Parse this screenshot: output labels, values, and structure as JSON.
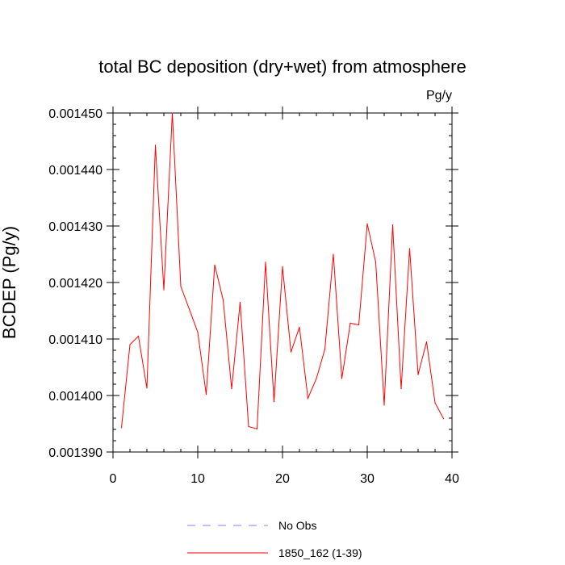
{
  "chart_data": {
    "type": "line",
    "title": "total BC deposition (dry+wet) from atmosphere",
    "units_label": "Pg/y",
    "xlabel": "",
    "ylabel": "BCDEP  (Pg/y)",
    "xlim": [
      0,
      40
    ],
    "ylim": [
      0.00139,
      0.00145
    ],
    "xticks": [
      "0",
      "10",
      "20",
      "30",
      "40"
    ],
    "yticks": [
      "0.001390",
      "0.001400",
      "0.001410",
      "0.001420",
      "0.001430",
      "0.001440",
      "0.001450"
    ],
    "grid": false,
    "legend_position": "bottom",
    "series": [
      {
        "name": "No Obs",
        "color": "#8080ff",
        "style": "dashed",
        "x": [],
        "values": []
      },
      {
        "name": "1850_162 (1-39)",
        "color": "#ff0000",
        "style": "solid",
        "x": [
          1,
          2,
          3,
          4,
          5,
          6,
          7,
          8,
          9,
          10,
          11,
          12,
          13,
          14,
          15,
          16,
          17,
          18,
          19,
          20,
          21,
          22,
          23,
          24,
          25,
          26,
          27,
          28,
          29,
          30,
          31,
          32,
          33,
          34,
          35,
          36,
          37,
          38,
          39
        ],
        "values": [
          0.0013943,
          0.001409,
          0.0014105,
          0.0014013,
          0.0014443,
          0.0014187,
          0.00145,
          0.0014193,
          0.0014153,
          0.0014112,
          0.0014002,
          0.0014231,
          0.0014169,
          0.0014012,
          0.0014165,
          0.0013945,
          0.0013941,
          0.0014236,
          0.0013989,
          0.0014228,
          0.0014077,
          0.0014121,
          0.0013995,
          0.001403,
          0.0014082,
          0.001425,
          0.001403,
          0.0014128,
          0.0014125,
          0.0014304,
          0.0014236,
          0.0013983,
          0.0014302,
          0.0014012,
          0.001426,
          0.0014037,
          0.0014095,
          0.0013987,
          0.0013959
        ]
      }
    ]
  }
}
